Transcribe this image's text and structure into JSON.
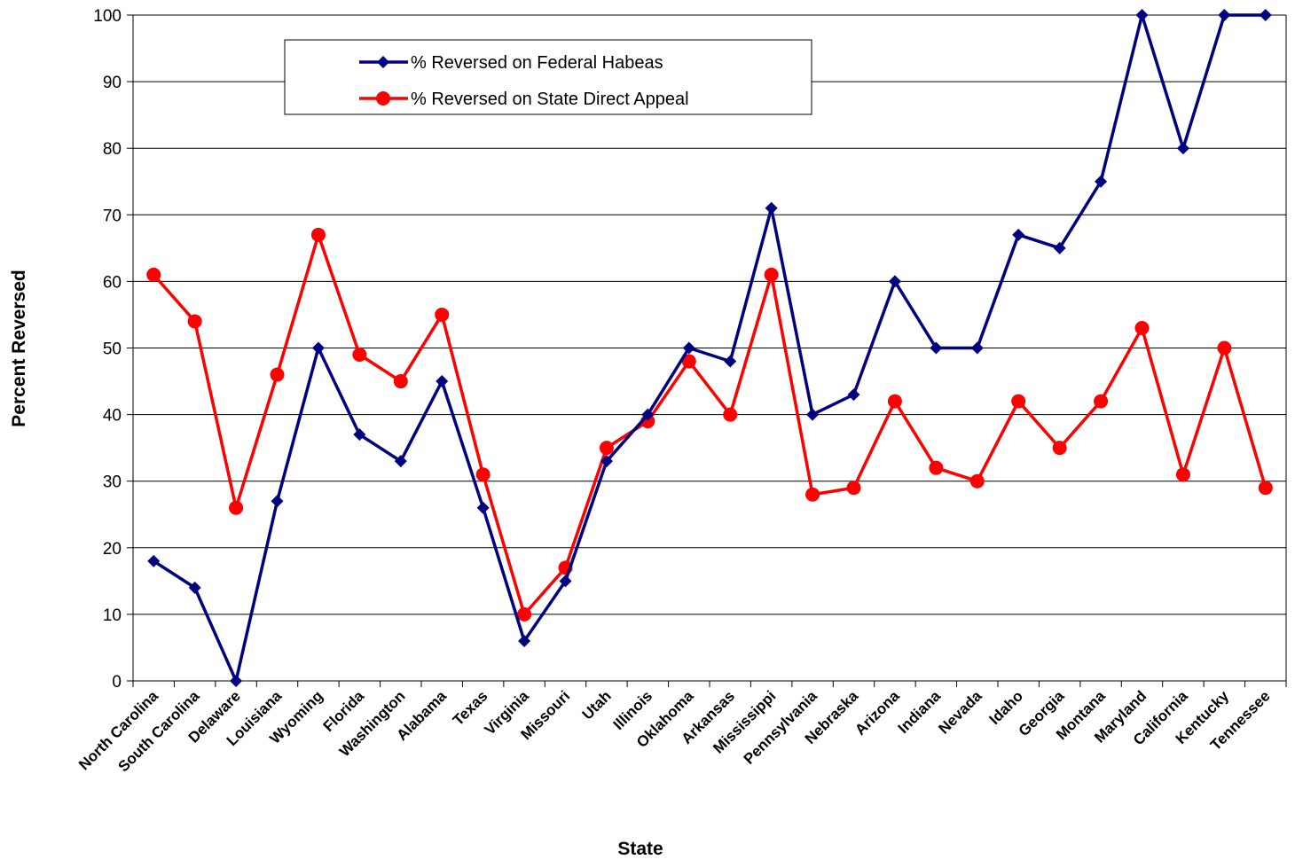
{
  "chart_data": {
    "type": "line",
    "title": "",
    "xlabel": "State",
    "ylabel": "Percent Reversed",
    "ylim": [
      0,
      100
    ],
    "yticks": [
      0,
      10,
      20,
      30,
      40,
      50,
      60,
      70,
      80,
      90,
      100
    ],
    "grid": "horizontal",
    "legend_position": "top-left",
    "categories": [
      "North Carolina",
      "South Carolina",
      "Delaware",
      "Louisiana",
      "Wyoming",
      "Florida",
      "Washington",
      "Alabama",
      "Texas",
      "Virginia",
      "Missouri",
      "Utah",
      "Illinois",
      "Oklahoma",
      "Arkansas",
      "Mississippi",
      "Pennsylvania",
      "Nebraska",
      "Arizona",
      "Indiana",
      "Nevada",
      "Idaho",
      "Georgia",
      "Montana",
      "Maryland",
      "California",
      "Kentucky",
      "Tennessee"
    ],
    "series": [
      {
        "name": "% Reversed on Federal Habeas",
        "color": "#000080",
        "marker": "diamond",
        "values": [
          18,
          14,
          0,
          27,
          50,
          37,
          33,
          45,
          26,
          6,
          15,
          33,
          40,
          50,
          48,
          71,
          40,
          43,
          60,
          50,
          50,
          67,
          65,
          75,
          100,
          80,
          100,
          100
        ]
      },
      {
        "name": "% Reversed on State Direct Appeal",
        "color": "#ff0000",
        "marker": "circle",
        "values": [
          61,
          54,
          26,
          46,
          67,
          49,
          45,
          55,
          31,
          10,
          17,
          35,
          39,
          48,
          40,
          61,
          28,
          29,
          42,
          32,
          30,
          42,
          35,
          42,
          53,
          31,
          50,
          29
        ]
      }
    ]
  }
}
